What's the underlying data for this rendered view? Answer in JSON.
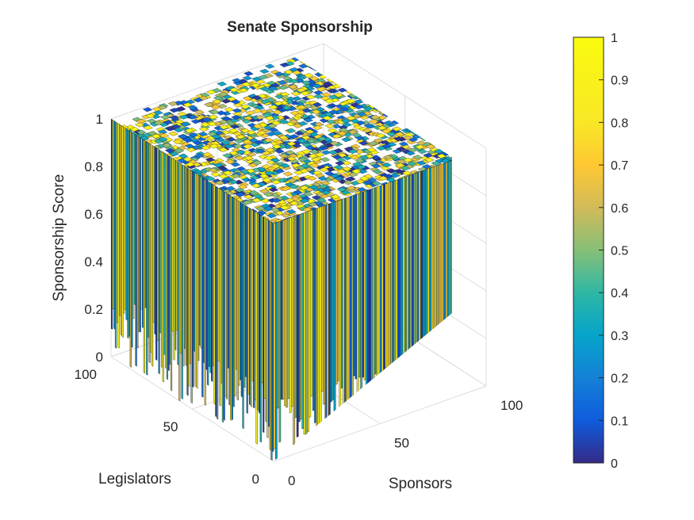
{
  "chart_data": {
    "type": "surface3d",
    "title": "Senate Sponsorship",
    "xlabel": "Sponsors",
    "ylabel": "Legislators",
    "zlabel": "Sponsorship Score",
    "xlim": [
      0,
      100
    ],
    "ylim": [
      0,
      100
    ],
    "zlim": [
      0,
      1
    ],
    "x_ticks": [
      "0",
      "50",
      "100"
    ],
    "y_ticks": [
      "0",
      "50",
      "100"
    ],
    "z_ticks": [
      "0",
      "0.2",
      "0.4",
      "0.6",
      "0.8",
      "1"
    ],
    "colormap": "parula",
    "colorbar": {
      "ticks": [
        "0",
        "0.1",
        "0.2",
        "0.3",
        "0.4",
        "0.5",
        "0.6",
        "0.7",
        "0.8",
        "0.9",
        "1"
      ],
      "range": [
        0,
        1
      ]
    },
    "grid": true
  }
}
